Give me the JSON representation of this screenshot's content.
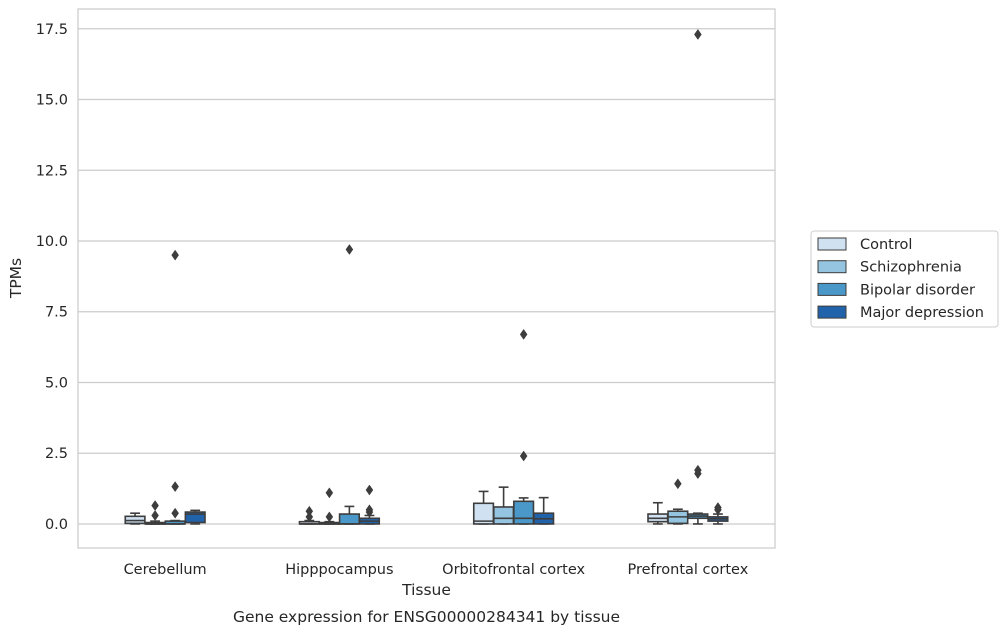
{
  "chart_data": {
    "type": "box",
    "caption": "Gene expression for ENSG00000284341 by tissue",
    "xlabel": "Tissue",
    "ylabel": "TPMs",
    "ylim": [
      -0.85,
      18.2
    ],
    "yticks": [
      "0.0",
      "2.5",
      "5.0",
      "7.5",
      "10.0",
      "12.5",
      "15.0",
      "17.5"
    ],
    "ytick_values": [
      0,
      2.5,
      5,
      7.5,
      10,
      12.5,
      15,
      17.5
    ],
    "categories": [
      "Cerebellum",
      "Hipppocampus",
      "Orbitofrontal cortex",
      "Prefrontal cortex"
    ],
    "grid": true,
    "legend_position": "right",
    "series": [
      {
        "name": "Control",
        "color": "#d0e1f2",
        "boxes": [
          {
            "whisker_low": 0.0,
            "q1": 0.02,
            "median": 0.12,
            "q3": 0.27,
            "whisker_high": 0.38,
            "outliers": []
          },
          {
            "whisker_low": 0.0,
            "q1": 0.0,
            "median": 0.0,
            "q3": 0.08,
            "whisker_high": 0.12,
            "outliers": [
              0.25,
              0.45
            ]
          },
          {
            "whisker_low": 0.0,
            "q1": 0.0,
            "median": 0.1,
            "q3": 0.73,
            "whisker_high": 1.15,
            "outliers": []
          },
          {
            "whisker_low": 0.0,
            "q1": 0.08,
            "median": 0.2,
            "q3": 0.35,
            "whisker_high": 0.75,
            "outliers": []
          }
        ]
      },
      {
        "name": "Schizophrenia",
        "color": "#94c4df",
        "boxes": [
          {
            "whisker_low": 0.0,
            "q1": 0.0,
            "median": 0.0,
            "q3": 0.05,
            "whisker_high": 0.1,
            "outliers": [
              0.3,
              0.65
            ]
          },
          {
            "whisker_low": 0.0,
            "q1": 0.0,
            "median": 0.0,
            "q3": 0.05,
            "whisker_high": 0.08,
            "outliers": [
              0.25,
              1.1
            ]
          },
          {
            "whisker_low": 0.0,
            "q1": 0.0,
            "median": 0.2,
            "q3": 0.6,
            "whisker_high": 1.3,
            "outliers": []
          },
          {
            "whisker_low": 0.0,
            "q1": 0.02,
            "median": 0.25,
            "q3": 0.45,
            "whisker_high": 0.52,
            "outliers": [
              1.42
            ]
          }
        ]
      },
      {
        "name": "Bipolar disorder",
        "color": "#4a98c9",
        "boxes": [
          {
            "whisker_low": 0.0,
            "q1": 0.0,
            "median": 0.0,
            "q3": 0.1,
            "whisker_high": 0.12,
            "outliers": [
              0.38,
              1.32,
              9.5
            ]
          },
          {
            "whisker_low": 0.0,
            "q1": 0.0,
            "median": 0.0,
            "q3": 0.35,
            "whisker_high": 0.62,
            "outliers": [
              9.7
            ]
          },
          {
            "whisker_low": 0.0,
            "q1": 0.0,
            "median": 0.2,
            "q3": 0.8,
            "whisker_high": 0.92,
            "outliers": [
              2.4,
              6.7
            ]
          },
          {
            "whisker_low": 0.0,
            "q1": 0.2,
            "median": 0.28,
            "q3": 0.35,
            "whisker_high": 0.38,
            "outliers": [
              1.78,
              1.9,
              17.3
            ]
          }
        ]
      },
      {
        "name": "Major depression",
        "color": "#2163aa",
        "boxes": [
          {
            "whisker_low": 0.0,
            "q1": 0.05,
            "median": 0.35,
            "q3": 0.42,
            "whisker_high": 0.48,
            "outliers": []
          },
          {
            "whisker_low": 0.0,
            "q1": 0.0,
            "median": 0.1,
            "q3": 0.2,
            "whisker_high": 0.3,
            "outliers": [
              0.42,
              0.5,
              1.2
            ]
          },
          {
            "whisker_low": 0.0,
            "q1": 0.0,
            "median": 0.18,
            "q3": 0.38,
            "whisker_high": 0.93,
            "outliers": []
          },
          {
            "whisker_low": 0.0,
            "q1": 0.1,
            "median": 0.18,
            "q3": 0.25,
            "whisker_high": 0.35,
            "outliers": [
              0.5,
              0.58
            ]
          }
        ]
      }
    ]
  }
}
